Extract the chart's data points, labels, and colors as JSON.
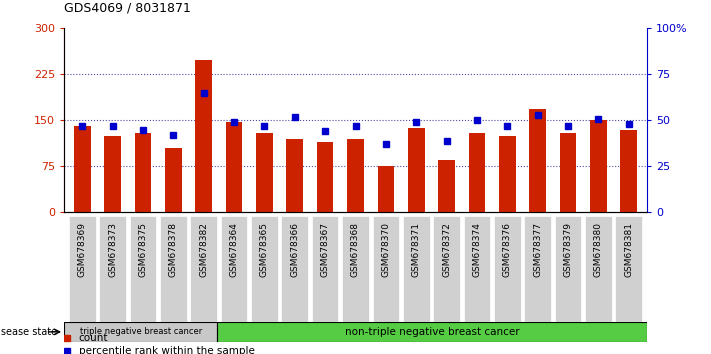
{
  "title": "GDS4069 / 8031871",
  "samples": [
    "GSM678369",
    "GSM678373",
    "GSM678375",
    "GSM678378",
    "GSM678382",
    "GSM678364",
    "GSM678365",
    "GSM678366",
    "GSM678367",
    "GSM678368",
    "GSM678370",
    "GSM678371",
    "GSM678372",
    "GSM678374",
    "GSM678376",
    "GSM678377",
    "GSM678379",
    "GSM678380",
    "GSM678381"
  ],
  "counts": [
    140,
    125,
    130,
    105,
    248,
    148,
    130,
    120,
    115,
    120,
    75,
    138,
    85,
    130,
    125,
    168,
    130,
    150,
    135
  ],
  "percentiles": [
    47,
    47,
    45,
    42,
    65,
    49,
    47,
    52,
    44,
    47,
    37,
    49,
    39,
    50,
    47,
    53,
    47,
    51,
    48
  ],
  "group1_label": "triple negative breast cancer",
  "group1_count": 5,
  "group2_label": "non-triple negative breast cancer",
  "group2_count": 14,
  "bar_color": "#cc2200",
  "dot_color": "#0000cc",
  "ylim_left": [
    0,
    300
  ],
  "ylim_right": [
    0,
    100
  ],
  "yticks_left": [
    0,
    75,
    150,
    225,
    300
  ],
  "ytick_labels_left": [
    "0",
    "75",
    "150",
    "225",
    "300"
  ],
  "yticks_right": [
    0,
    25,
    50,
    75,
    100
  ],
  "ytick_labels_right": [
    "0",
    "25",
    "50",
    "75",
    "100%"
  ],
  "hlines": [
    75,
    150,
    225
  ],
  "disease_state_label": "disease state",
  "legend_count_label": "count",
  "legend_pct_label": "percentile rank within the sample",
  "background_color": "#ffffff",
  "group1_bg": "#c8c8c8",
  "group2_bg": "#55cc44",
  "xticklabel_bg": "#d0d0d0",
  "bar_width": 0.55
}
